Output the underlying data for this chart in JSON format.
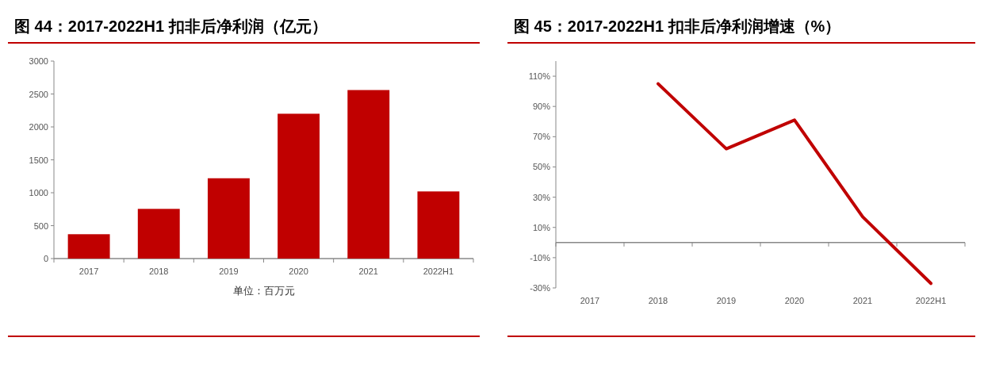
{
  "chart_data": [
    {
      "type": "bar",
      "title": "图 44：2017-2022H1 扣非后净利润（亿元）",
      "xlabel": "单位：百万元",
      "categories": [
        "2017",
        "2018",
        "2019",
        "2020",
        "2021",
        "2022H1"
      ],
      "values": [
        370,
        755,
        1220,
        2200,
        2560,
        1020
      ],
      "color": "#c00000",
      "ylim": [
        0,
        3000
      ],
      "yticks": [
        0,
        500,
        1000,
        1500,
        2000,
        2500,
        3000
      ]
    },
    {
      "type": "line",
      "title": "图 45：2017-2022H1 扣非后净利润增速（%）",
      "categories": [
        "2017",
        "2018",
        "2019",
        "2020",
        "2021",
        "2022H1"
      ],
      "values": [
        null,
        105,
        62,
        81,
        17,
        -27
      ],
      "color": "#c00000",
      "ylim": [
        -30,
        120
      ],
      "yticks": [
        {
          "value": -30,
          "label": "-30%"
        },
        {
          "value": -10,
          "label": "-10%"
        },
        {
          "value": 10,
          "label": "10%"
        },
        {
          "value": 30,
          "label": "30%"
        },
        {
          "value": 50,
          "label": "50%"
        },
        {
          "value": 70,
          "label": "70%"
        },
        {
          "value": 90,
          "label": "90%"
        },
        {
          "value": 110,
          "label": "110%"
        }
      ]
    }
  ]
}
